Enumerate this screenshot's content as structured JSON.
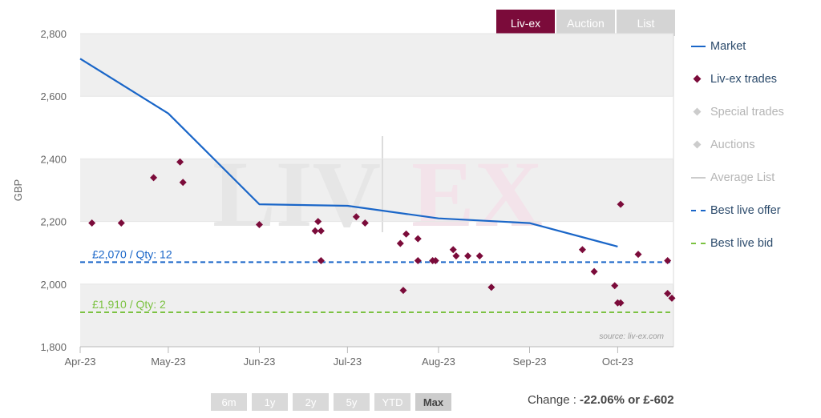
{
  "tabs": [
    {
      "label": "Liv-ex",
      "active": true
    },
    {
      "label": "Auction",
      "active": false
    },
    {
      "label": "List",
      "active": false
    }
  ],
  "legend": [
    {
      "label": "Market",
      "symbol": "line",
      "color": "#1a66c8",
      "text_color": "#2b4a6b"
    },
    {
      "label": "Liv-ex trades",
      "symbol": "diamond",
      "color": "#7b0b3a",
      "text_color": "#2b4a6b"
    },
    {
      "label": "Special trades",
      "symbol": "diamond",
      "color": "#cccccc",
      "text_color": "#b5b5b5"
    },
    {
      "label": "Auctions",
      "symbol": "diamond",
      "color": "#cccccc",
      "text_color": "#b5b5b5"
    },
    {
      "label": "Average List",
      "symbol": "line",
      "color": "#cccccc",
      "text_color": "#b5b5b5"
    },
    {
      "label": "Best live offer",
      "symbol": "dashed-line",
      "color": "#1a66c8",
      "text_color": "#2b4a6b"
    },
    {
      "label": "Best live bid",
      "symbol": "dashed-line",
      "color": "#7cc242",
      "text_color": "#2b4a6b"
    }
  ],
  "range_buttons": [
    {
      "label": "6m",
      "active": false
    },
    {
      "label": "1y",
      "active": false
    },
    {
      "label": "2y",
      "active": false
    },
    {
      "label": "5y",
      "active": false
    },
    {
      "label": "YTD",
      "active": false
    },
    {
      "label": "Max",
      "active": true
    }
  ],
  "change": {
    "prefix": "Change : ",
    "value": "-22.06% or £-602"
  },
  "watermark": {
    "left": "LIV",
    "right": "EX"
  },
  "colors": {
    "market": "#1a66c8",
    "trades": "#7b0b3a",
    "offer": "#1a66c8",
    "bid": "#7cc242",
    "band": "#efefef"
  },
  "chart_data": {
    "type": "line",
    "title": "",
    "xlabel": "",
    "ylabel": "GBP",
    "ylim": [
      1800,
      2800
    ],
    "yticks": [
      1800,
      2000,
      2200,
      2400,
      2600,
      2800
    ],
    "ytick_labels": [
      "1,800",
      "2,000",
      "2,200",
      "2,400",
      "2,600",
      "2,800"
    ],
    "xlim": [
      "2023-04-01",
      "2023-10-20"
    ],
    "xticks": [
      "2023-04-01",
      "2023-05-01",
      "2023-06-01",
      "2023-07-01",
      "2023-08-01",
      "2023-09-01",
      "2023-10-01"
    ],
    "xtick_labels": [
      "Apr-23",
      "May-23",
      "Jun-23",
      "Jul-23",
      "Aug-23",
      "Sep-23",
      "Oct-23"
    ],
    "grid": "alternating horizontal bands",
    "legend_position": "right",
    "source_note": "source: liv-ex.com",
    "series": [
      {
        "name": "Market",
        "type": "line",
        "points": [
          {
            "x": "2023-04-01",
            "y": 2720
          },
          {
            "x": "2023-05-01",
            "y": 2545
          },
          {
            "x": "2023-06-01",
            "y": 2255
          },
          {
            "x": "2023-07-01",
            "y": 2250
          },
          {
            "x": "2023-08-01",
            "y": 2210
          },
          {
            "x": "2023-09-01",
            "y": 2195
          },
          {
            "x": "2023-10-01",
            "y": 2120
          }
        ]
      },
      {
        "name": "Liv-ex trades",
        "type": "scatter",
        "points": [
          {
            "x": "2023-04-05",
            "y": 2195
          },
          {
            "x": "2023-04-15",
            "y": 2195
          },
          {
            "x": "2023-04-26",
            "y": 2340
          },
          {
            "x": "2023-05-05",
            "y": 2390
          },
          {
            "x": "2023-05-06",
            "y": 2325
          },
          {
            "x": "2023-06-01",
            "y": 2190
          },
          {
            "x": "2023-06-20",
            "y": 2170
          },
          {
            "x": "2023-06-21",
            "y": 2200
          },
          {
            "x": "2023-06-22",
            "y": 2170
          },
          {
            "x": "2023-06-22",
            "y": 2075
          },
          {
            "x": "2023-07-04",
            "y": 2215
          },
          {
            "x": "2023-07-07",
            "y": 2195
          },
          {
            "x": "2023-07-19",
            "y": 2130
          },
          {
            "x": "2023-07-20",
            "y": 1980
          },
          {
            "x": "2023-07-21",
            "y": 2160
          },
          {
            "x": "2023-07-25",
            "y": 2145
          },
          {
            "x": "2023-07-25",
            "y": 2075
          },
          {
            "x": "2023-07-30",
            "y": 2075
          },
          {
            "x": "2023-07-31",
            "y": 2075
          },
          {
            "x": "2023-08-06",
            "y": 2110
          },
          {
            "x": "2023-08-07",
            "y": 2090
          },
          {
            "x": "2023-08-11",
            "y": 2090
          },
          {
            "x": "2023-08-15",
            "y": 2090
          },
          {
            "x": "2023-08-19",
            "y": 1990
          },
          {
            "x": "2023-09-19",
            "y": 2110
          },
          {
            "x": "2023-09-23",
            "y": 2040
          },
          {
            "x": "2023-09-30",
            "y": 1995
          },
          {
            "x": "2023-10-01",
            "y": 1940
          },
          {
            "x": "2023-10-02",
            "y": 1940
          },
          {
            "x": "2023-10-02",
            "y": 2255
          },
          {
            "x": "2023-10-08",
            "y": 2095
          },
          {
            "x": "2023-10-18",
            "y": 2075
          },
          {
            "x": "2023-10-18",
            "y": 1970
          },
          {
            "x": "2023-10-21",
            "y": 1955
          }
        ]
      }
    ],
    "reference_lines": [
      {
        "name": "Best live offer",
        "y": 2070,
        "label": "£2,070 / Qty: 12",
        "style": "dashed"
      },
      {
        "name": "Best live bid",
        "y": 1910,
        "label": "£1,910 / Qty: 2",
        "style": "dashed"
      }
    ]
  }
}
